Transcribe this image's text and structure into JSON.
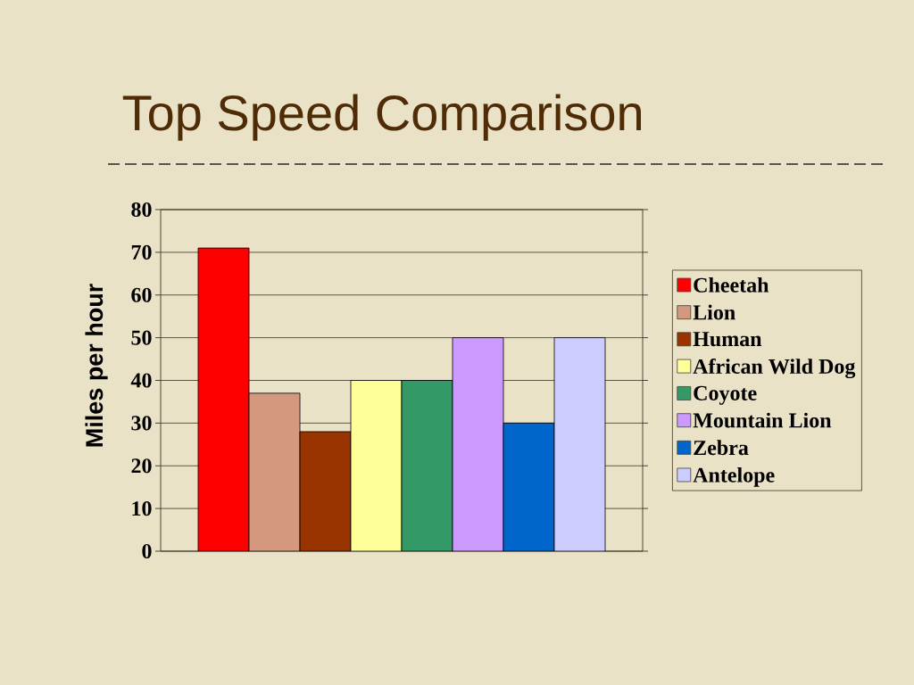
{
  "chart_data": {
    "type": "bar",
    "title": "Top Speed Comparison",
    "ylabel": "Miles per hour",
    "categories": [
      null
    ],
    "series": [
      {
        "name": "Cheetah",
        "color": "#ff0000",
        "values": [
          71
        ]
      },
      {
        "name": "Lion",
        "color": "#d4987f",
        "values": [
          37
        ]
      },
      {
        "name": "Human",
        "color": "#993300",
        "values": [
          28
        ]
      },
      {
        "name": "African Wild Dog",
        "color": "#ffff99",
        "values": [
          40
        ]
      },
      {
        "name": "Coyote",
        "color": "#339966",
        "values": [
          40
        ]
      },
      {
        "name": "Mountain Lion",
        "color": "#cc99ff",
        "values": [
          50
        ]
      },
      {
        "name": "Zebra",
        "color": "#0066cc",
        "values": [
          30
        ]
      },
      {
        "name": "Antelope",
        "color": "#ccccff",
        "values": [
          50
        ]
      }
    ],
    "ylim": [
      0,
      80
    ],
    "yticks": [
      0,
      10,
      20,
      30,
      40,
      50,
      60,
      70,
      80
    ],
    "grid": "y",
    "legend": "right"
  }
}
